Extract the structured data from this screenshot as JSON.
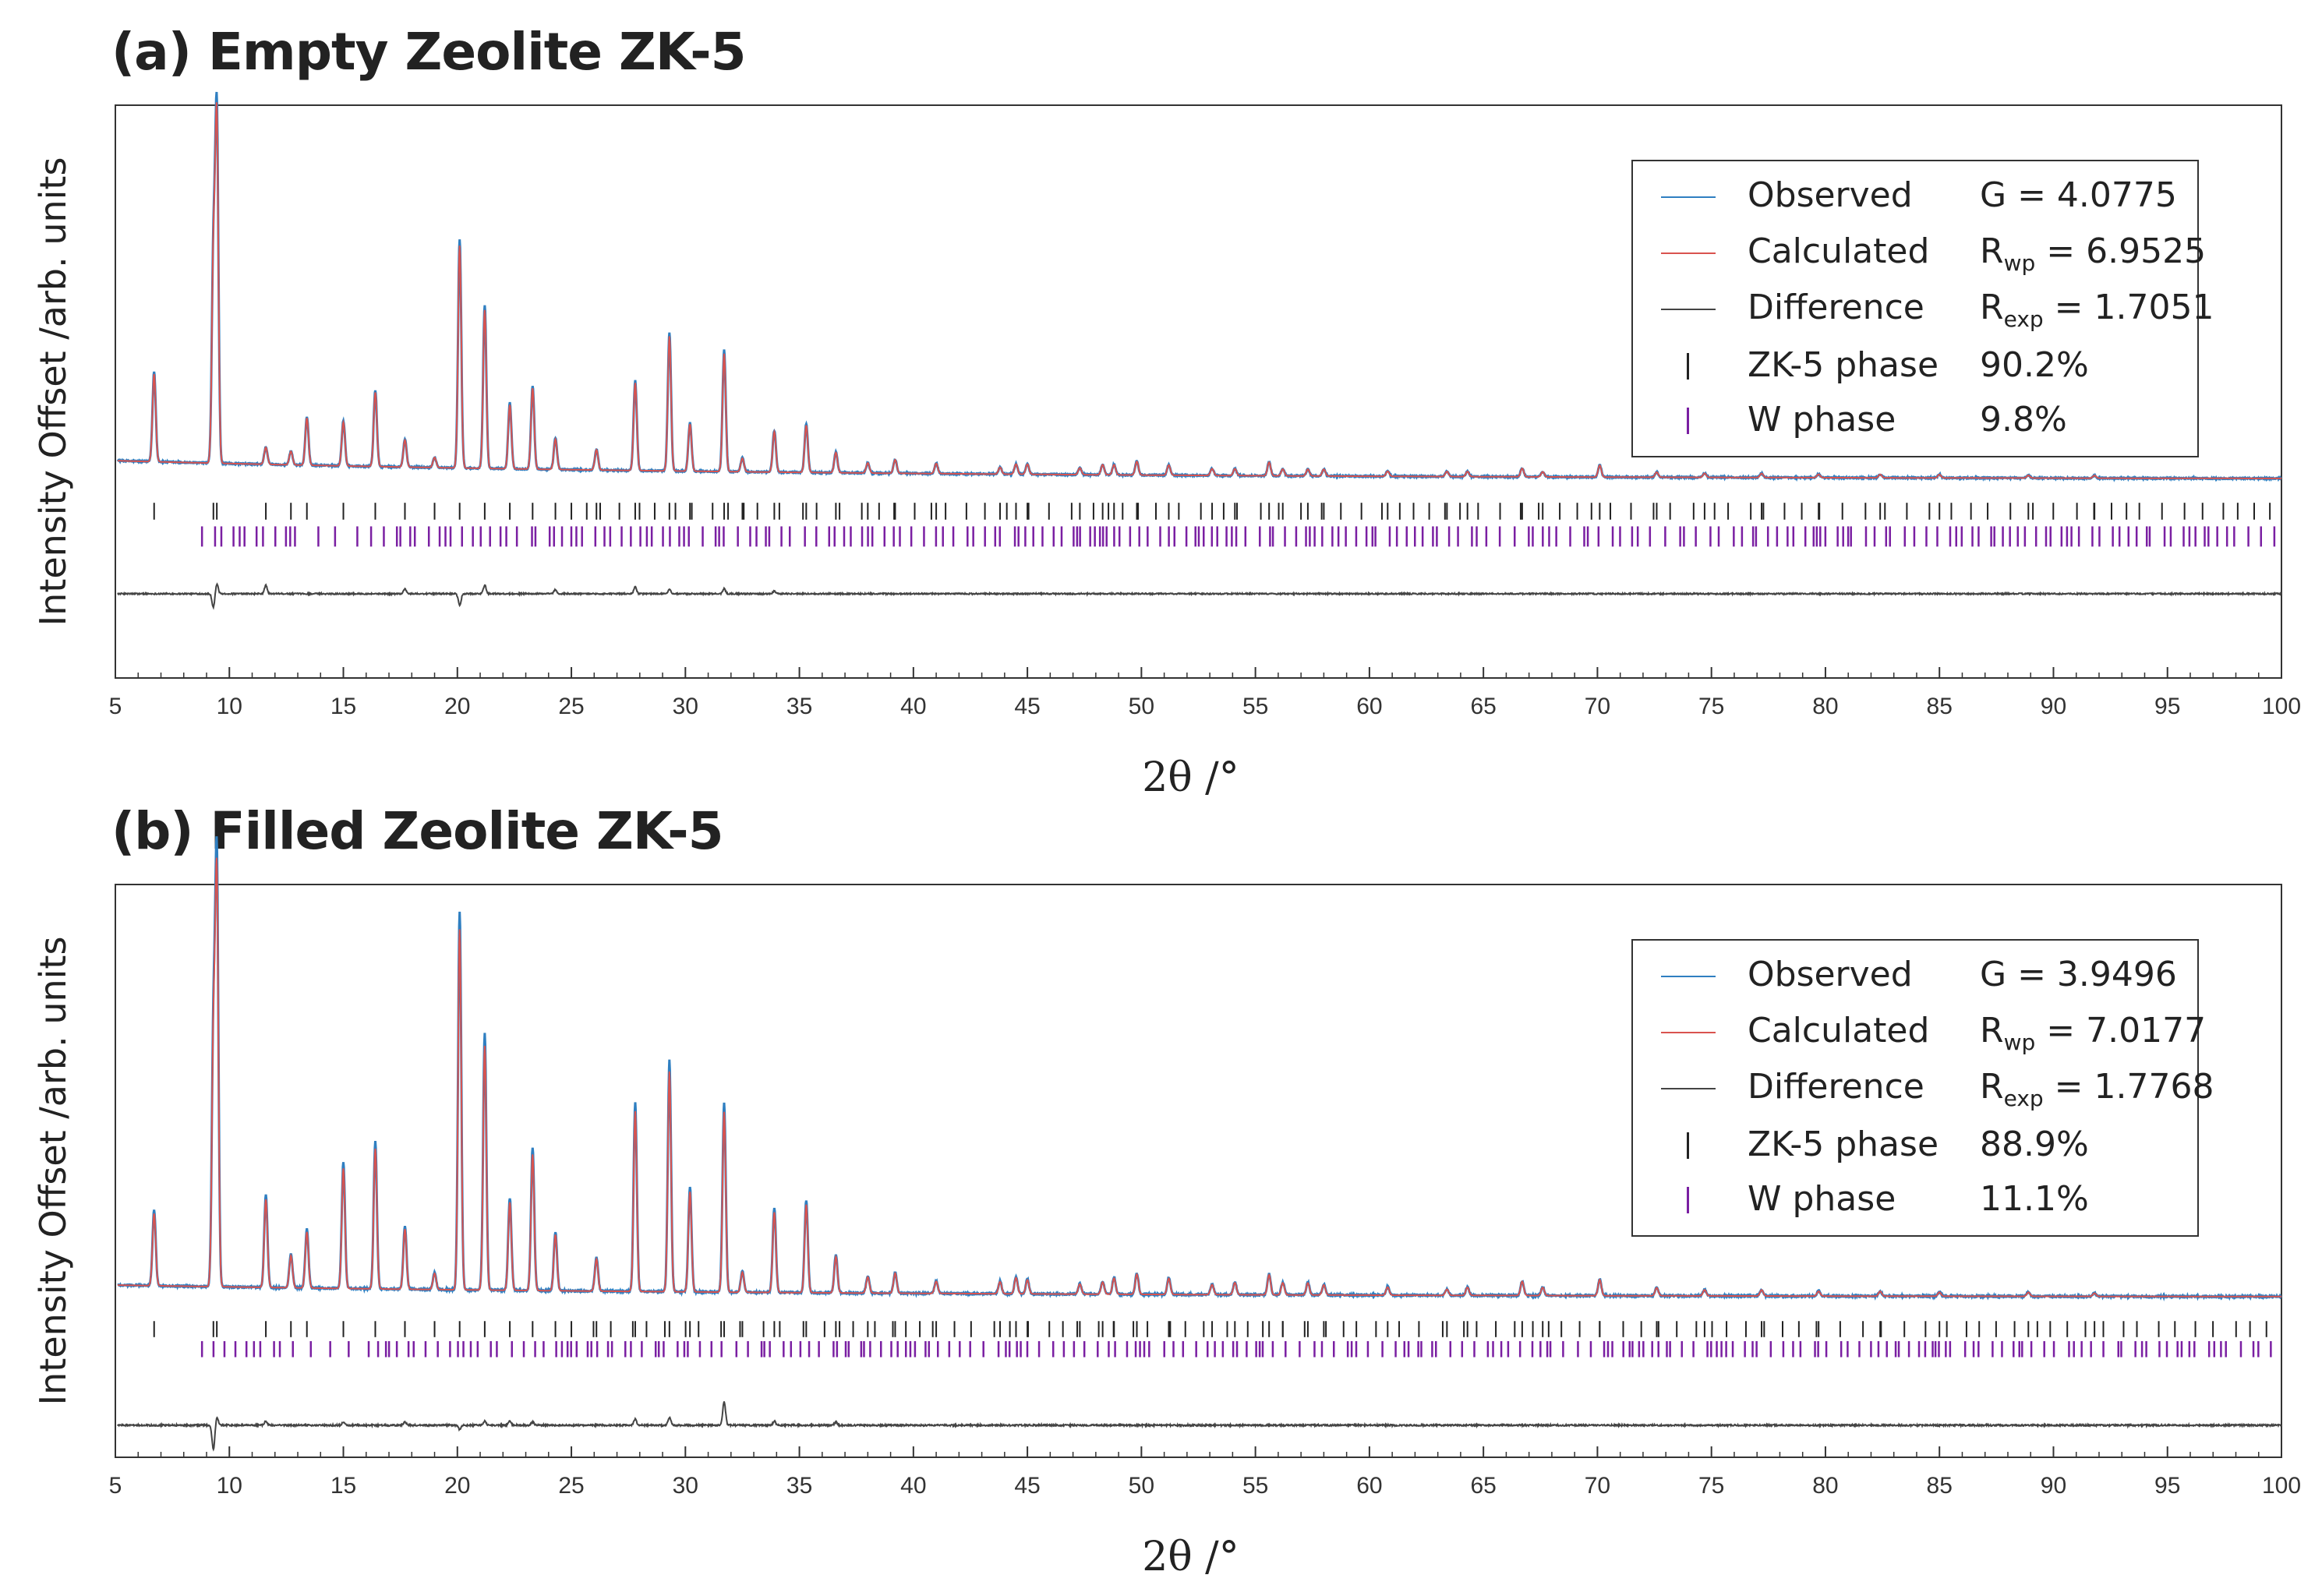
{
  "colors": {
    "observed": "#2f7fc1",
    "calculated": "#d9534f",
    "difference": "#444444",
    "zk5_phase": "#222222",
    "w_phase": "#7a1fa2",
    "axis": "#333333"
  },
  "chart_data": [
    {
      "type": "line",
      "title": "(a) Empty Zeolite ZK-5",
      "xlabel": "2θ /°",
      "ylabel": "Intensity Offset /arb. units",
      "xlim": [
        5,
        100
      ],
      "ylim": [
        -0.55,
        1.15
      ],
      "xticks": [
        5,
        10,
        15,
        20,
        25,
        30,
        35,
        40,
        45,
        50,
        55,
        60,
        65,
        70,
        75,
        80,
        85,
        90,
        95,
        100
      ],
      "baseline": 0.04,
      "decay": 0.055,
      "obs_scale": 1.03,
      "legend": {
        "observed": "Observed",
        "calculated": "Calculated",
        "difference": "Difference",
        "zk5": "ZK-5 phase",
        "w": "W phase",
        "g": "G = 4.0775",
        "rwp_sub": "wp",
        "rwp_val": " = 6.9525",
        "rexp_sub": "exp",
        "rexp_val": " = 1.7051",
        "zk5_pct": "90.2%",
        "w_pct": "9.8%"
      },
      "peaks": [
        [
          6.7,
          0.26
        ],
        [
          9.3,
          0.6
        ],
        [
          9.45,
          1.0
        ],
        [
          11.6,
          0.05
        ],
        [
          12.7,
          0.04
        ],
        [
          13.4,
          0.14
        ],
        [
          15.0,
          0.13
        ],
        [
          16.4,
          0.22
        ],
        [
          17.7,
          0.08
        ],
        [
          19.0,
          0.03
        ],
        [
          20.1,
          0.66
        ],
        [
          21.2,
          0.47
        ],
        [
          22.3,
          0.19
        ],
        [
          23.3,
          0.24
        ],
        [
          24.3,
          0.09
        ],
        [
          26.1,
          0.06
        ],
        [
          27.8,
          0.26
        ],
        [
          29.3,
          0.4
        ],
        [
          30.2,
          0.14
        ],
        [
          31.7,
          0.35
        ],
        [
          32.5,
          0.04
        ],
        [
          33.9,
          0.12
        ],
        [
          35.3,
          0.14
        ],
        [
          36.6,
          0.06
        ],
        [
          38.0,
          0.03
        ],
        [
          39.2,
          0.04
        ],
        [
          41.0,
          0.03
        ],
        [
          43.8,
          0.02
        ],
        [
          44.5,
          0.03
        ],
        [
          45.0,
          0.03
        ],
        [
          47.3,
          0.02
        ],
        [
          48.3,
          0.03
        ],
        [
          48.8,
          0.03
        ],
        [
          49.8,
          0.04
        ],
        [
          51.2,
          0.03
        ],
        [
          53.1,
          0.02
        ],
        [
          54.1,
          0.02
        ],
        [
          55.6,
          0.04
        ],
        [
          56.2,
          0.02
        ],
        [
          57.3,
          0.02
        ],
        [
          58.0,
          0.02
        ],
        [
          60.8,
          0.015
        ],
        [
          63.4,
          0.015
        ],
        [
          64.3,
          0.015
        ],
        [
          66.7,
          0.025
        ],
        [
          67.6,
          0.015
        ],
        [
          70.1,
          0.035
        ],
        [
          72.6,
          0.015
        ],
        [
          74.7,
          0.012
        ],
        [
          77.2,
          0.012
        ],
        [
          79.7,
          0.01
        ],
        [
          82.4,
          0.01
        ],
        [
          85.0,
          0.01
        ],
        [
          88.9,
          0.008
        ],
        [
          91.8,
          0.008
        ]
      ],
      "diff": [
        [
          9.3,
          -0.04
        ],
        [
          9.45,
          0.03
        ],
        [
          11.6,
          0.025
        ],
        [
          17.7,
          0.015
        ],
        [
          20.1,
          -0.035
        ],
        [
          21.2,
          0.025
        ],
        [
          24.3,
          0.012
        ],
        [
          27.8,
          0.02
        ],
        [
          29.3,
          0.012
        ],
        [
          31.7,
          0.015
        ],
        [
          33.9,
          0.008
        ]
      ],
      "ticks_zk5_y": [
        -0.08,
        -0.03
      ],
      "ticks_w_y": [
        -0.16,
        -0.1
      ]
    },
    {
      "type": "line",
      "title": "(b) Filled Zeolite ZK-5",
      "xlabel": "2θ /°",
      "ylabel": "Intensity Offset /arb. units",
      "xlim": [
        5,
        100
      ],
      "ylim": [
        -0.38,
        1.05
      ],
      "xticks": [
        5,
        10,
        15,
        20,
        25,
        30,
        35,
        40,
        45,
        50,
        55,
        60,
        65,
        70,
        75,
        80,
        85,
        90,
        95,
        100
      ],
      "baseline": 0.02,
      "decay": 0.03,
      "obs_scale": 1.05,
      "legend": {
        "observed": "Observed",
        "calculated": "Calculated",
        "difference": "Difference",
        "zk5": "ZK-5 phase",
        "w": "W phase",
        "g": "G = 3.9496",
        "rwp_sub": "wp",
        "rwp_val": " = 7.0177",
        "rexp_sub": "exp",
        "rexp_val": " = 1.7768",
        "zk5_pct": "88.9%",
        "w_pct": "11.1%"
      },
      "peaks": [
        [
          6.7,
          0.18
        ],
        [
          9.3,
          0.6
        ],
        [
          9.45,
          1.0
        ],
        [
          11.6,
          0.22
        ],
        [
          12.7,
          0.08
        ],
        [
          13.4,
          0.14
        ],
        [
          15.0,
          0.3
        ],
        [
          16.4,
          0.35
        ],
        [
          17.7,
          0.15
        ],
        [
          19.0,
          0.04
        ],
        [
          20.1,
          0.9
        ],
        [
          21.2,
          0.61
        ],
        [
          22.3,
          0.22
        ],
        [
          23.3,
          0.34
        ],
        [
          24.3,
          0.14
        ],
        [
          26.1,
          0.08
        ],
        [
          27.8,
          0.45
        ],
        [
          29.3,
          0.55
        ],
        [
          30.2,
          0.25
        ],
        [
          31.7,
          0.45
        ],
        [
          32.5,
          0.05
        ],
        [
          33.9,
          0.2
        ],
        [
          35.3,
          0.22
        ],
        [
          36.6,
          0.09
        ],
        [
          38.0,
          0.04
        ],
        [
          39.2,
          0.05
        ],
        [
          41.0,
          0.03
        ],
        [
          43.8,
          0.03
        ],
        [
          44.5,
          0.04
        ],
        [
          45.0,
          0.035
        ],
        [
          47.3,
          0.025
        ],
        [
          48.3,
          0.03
        ],
        [
          48.8,
          0.04
        ],
        [
          49.8,
          0.05
        ],
        [
          51.2,
          0.04
        ],
        [
          53.1,
          0.025
        ],
        [
          54.1,
          0.03
        ],
        [
          55.6,
          0.05
        ],
        [
          56.2,
          0.03
        ],
        [
          57.3,
          0.03
        ],
        [
          58.0,
          0.025
        ],
        [
          60.8,
          0.02
        ],
        [
          63.4,
          0.015
        ],
        [
          64.3,
          0.02
        ],
        [
          66.7,
          0.035
        ],
        [
          67.6,
          0.02
        ],
        [
          70.1,
          0.04
        ],
        [
          72.6,
          0.02
        ],
        [
          74.7,
          0.015
        ],
        [
          77.2,
          0.015
        ],
        [
          79.7,
          0.012
        ],
        [
          82.4,
          0.012
        ],
        [
          85.0,
          0.01
        ],
        [
          88.9,
          0.01
        ],
        [
          91.8,
          0.008
        ]
      ],
      "diff": [
        [
          9.3,
          -0.06
        ],
        [
          9.45,
          0.02
        ],
        [
          11.6,
          0.01
        ],
        [
          15.0,
          0.008
        ],
        [
          17.7,
          0.008
        ],
        [
          20.1,
          -0.01
        ],
        [
          21.2,
          0.01
        ],
        [
          22.3,
          0.01
        ],
        [
          23.3,
          0.008
        ],
        [
          27.8,
          0.015
        ],
        [
          29.3,
          0.02
        ],
        [
          31.7,
          0.06
        ],
        [
          33.9,
          0.01
        ],
        [
          36.6,
          0.008
        ]
      ],
      "ticks_zk5_y": [
        -0.08,
        -0.04
      ],
      "ticks_w_y": [
        -0.13,
        -0.09
      ]
    }
  ]
}
